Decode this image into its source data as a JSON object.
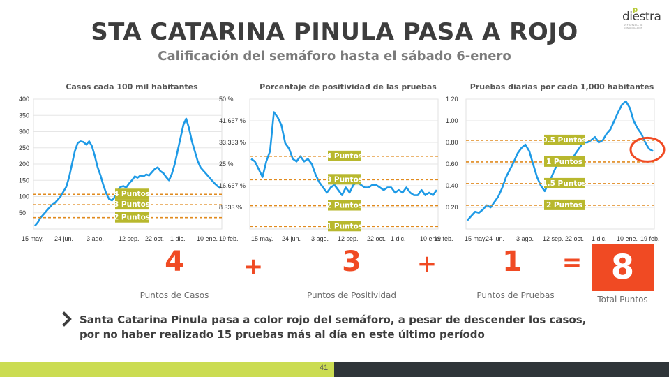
{
  "header": {
    "title": "STA CATARINA PINULA PASA A ROJO",
    "subtitle": "Calificación del semáforo hasta el sábado 6-enero",
    "logo_text": "diestra",
    "logo_dot": "p",
    "logo_tagline": "ESTRATEGIA DE COMUNICACIÓN"
  },
  "colors": {
    "line": "#1e9ae6",
    "threshold": "#e08a1e",
    "label_bg": "#b8b82e",
    "accent": "#f04a23"
  },
  "chart_data": [
    {
      "type": "line",
      "title": "Casos cada 100 mil habitantes",
      "x_ticks": [
        "15 may.",
        "24 jun.",
        "3 ago.",
        "12 sep.",
        "22 oct.",
        "1 dic.",
        "10 ene.",
        "19 feb."
      ],
      "y_ticks": [
        "400",
        "350",
        "300",
        "250",
        "200",
        "150",
        "100",
        "50"
      ],
      "ylim": [
        0,
        400
      ],
      "grid": true,
      "series": [
        {
          "values": [
            10,
            20,
            35,
            45,
            55,
            65,
            75,
            80,
            90,
            100,
            115,
            130,
            160,
            200,
            240,
            265,
            270,
            268,
            260,
            270,
            255,
            225,
            190,
            165,
            135,
            110,
            92,
            88,
            98,
            118,
            130,
            132,
            128,
            140,
            150,
            162,
            158,
            165,
            162,
            168,
            165,
            175,
            185,
            190,
            178,
            172,
            160,
            150,
            170,
            200,
            240,
            280,
            320,
            340,
            310,
            270,
            240,
            210,
            190,
            180,
            170,
            160,
            150,
            140,
            132,
            125
          ]
        }
      ],
      "thresholds": [
        {
          "value": 107,
          "label": "4 Puntos"
        },
        {
          "value": 75,
          "label": "3 Puntos"
        },
        {
          "value": 35,
          "label": "2 Puntos"
        }
      ]
    },
    {
      "type": "line",
      "title": "Porcentaje de positividad de las pruebas",
      "x_ticks": [
        "15 may.",
        "24 jun.",
        "3 ago.",
        "12 sep.",
        "22 oct.",
        "1 dic.",
        "10 ene.",
        "19 feb."
      ],
      "y_ticks": [
        "50 %",
        "41.667 %",
        "33.333 %",
        "25 %",
        "16.667 %",
        "8.333 %"
      ],
      "ylim": [
        0,
        50
      ],
      "grid": true,
      "series": [
        {
          "values": [
            27,
            26,
            23,
            20,
            26,
            30,
            45,
            43,
            40,
            33,
            31,
            27,
            26,
            28,
            26,
            27,
            25,
            21,
            18,
            16,
            14,
            16,
            17,
            15,
            13,
            16,
            14,
            17,
            18,
            17,
            16,
            16,
            17,
            17,
            16,
            15,
            16,
            16,
            14,
            15,
            14,
            16,
            14,
            13,
            13,
            15,
            13,
            14,
            13,
            15
          ]
        }
      ],
      "thresholds": [
        {
          "value": 28,
          "label": "4 Puntos"
        },
        {
          "value": 19,
          "label": "3 Puntos"
        },
        {
          "value": 9,
          "label": "2 Puntos"
        },
        {
          "value": 1,
          "label": "1 Puntos"
        }
      ]
    },
    {
      "type": "line",
      "title": "Pruebas diarias por cada 1,000 habitantes",
      "x_ticks": [
        "15 may.",
        "24 jun.",
        "3 ago.",
        "12 sep.",
        "22 oct.",
        "1 dic.",
        "10 ene.",
        "19 feb."
      ],
      "y_ticks": [
        "1.20",
        "1.00",
        "0.80",
        "0.60",
        "0.40",
        "0.20"
      ],
      "ylim": [
        0,
        1.2
      ],
      "grid": true,
      "series": [
        {
          "values": [
            0.08,
            0.12,
            0.16,
            0.15,
            0.18,
            0.22,
            0.2,
            0.25,
            0.3,
            0.38,
            0.48,
            0.55,
            0.62,
            0.7,
            0.75,
            0.78,
            0.72,
            0.6,
            0.48,
            0.4,
            0.35,
            0.42,
            0.5,
            0.58,
            0.62,
            0.6,
            0.63,
            0.64,
            0.7,
            0.75,
            0.8,
            0.8,
            0.82,
            0.85,
            0.8,
            0.82,
            0.88,
            0.92,
            1.0,
            1.08,
            1.15,
            1.18,
            1.12,
            1.0,
            0.93,
            0.88,
            0.8,
            0.74,
            0.72
          ]
        }
      ],
      "thresholds": [
        {
          "value": 0.82,
          "label": "0.5 Puntos"
        },
        {
          "value": 0.62,
          "label": "1 Puntos"
        },
        {
          "value": 0.42,
          "label": "1.5 Puntos"
        },
        {
          "value": 0.22,
          "label": "2 Puntos"
        }
      ]
    }
  ],
  "scores": {
    "casos": "4",
    "plus1": "+",
    "positividad": "3",
    "plus2": "+",
    "pruebas": "1",
    "equals": "=",
    "total": "8",
    "casos_label": "Puntos de Casos",
    "positividad_label": "Puntos de Positividad",
    "pruebas_label": "Puntos de Pruebas",
    "total_label": "Total Puntos"
  },
  "note": "Santa Catarina Pinula pasa a color rojo del semáforo, a pesar de descender los casos, por no haber realizado 15 pruebas más al día en este último período",
  "footer": {
    "page_number": "41"
  }
}
